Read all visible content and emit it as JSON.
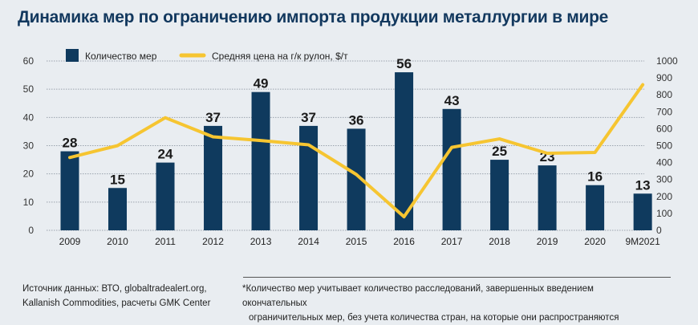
{
  "title": "Динамика мер по ограничению импорта продукции металлургии в мире",
  "chart_data": {
    "type": "bar+line",
    "title": "Динамика мер по ограничению импорта продукции металлургии в мире",
    "categories": [
      "2009",
      "2010",
      "2011",
      "2012",
      "2013",
      "2014",
      "2015",
      "2016",
      "2017",
      "2018",
      "2019",
      "2020",
      "9M2021"
    ],
    "series": [
      {
        "name": "Количество мер",
        "type": "bar",
        "axis": "left",
        "color": "#0f3a5e",
        "values": [
          28,
          15,
          24,
          37,
          49,
          37,
          36,
          56,
          43,
          25,
          23,
          16,
          13
        ]
      },
      {
        "name": "Средняя цена на г/к рулон, $/т",
        "type": "line",
        "axis": "right",
        "color": "#f6c531",
        "values": [
          430,
          500,
          665,
          552,
          530,
          505,
          330,
          80,
          490,
          540,
          455,
          460,
          860
        ]
      }
    ],
    "y_left": {
      "range": [
        0,
        60
      ],
      "ticks": [
        "0",
        "10",
        "20",
        "30",
        "40",
        "50",
        "60"
      ]
    },
    "y_right": {
      "range": [
        0,
        1000
      ],
      "ticks": [
        "0",
        "100",
        "200",
        "300",
        "400",
        "500",
        "600",
        "700",
        "800",
        "900",
        "1000"
      ]
    },
    "grid": true,
    "legend": "top-left"
  },
  "footer": {
    "source_line1": "Источник данных: ВТО, globaltradealert.org,",
    "source_line2": "Kallanish Commodities, расчеты GMK Center",
    "note_line1": "*Количество мер учитывает количество расследований, завершенных введением окончательных",
    "note_line2": "ограничительных мер, без учета количества стран, на которые они распространяются"
  }
}
